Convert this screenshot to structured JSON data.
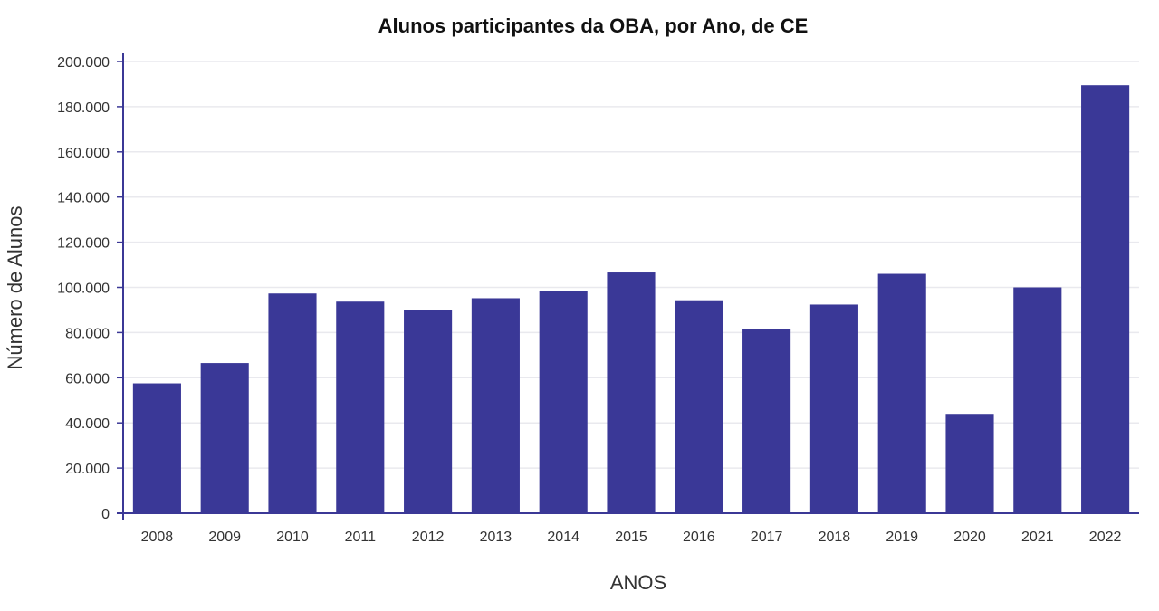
{
  "chart_data": {
    "type": "bar",
    "title": "Alunos participantes da OBA, por Ano, de CE",
    "xlabel": "ANOS",
    "ylabel": "Número de Alunos",
    "categories": [
      "2008",
      "2009",
      "2010",
      "2011",
      "2012",
      "2013",
      "2014",
      "2015",
      "2016",
      "2017",
      "2018",
      "2019",
      "2020",
      "2021",
      "2022"
    ],
    "values": [
      57500,
      66500,
      97300,
      93700,
      89800,
      95200,
      98500,
      106600,
      94300,
      81600,
      92400,
      106000,
      44000,
      100000,
      189500
    ],
    "ylim": [
      0,
      200000
    ],
    "yticks": [
      0,
      20000,
      40000,
      60000,
      80000,
      100000,
      120000,
      140000,
      160000,
      180000,
      200000
    ],
    "ytick_labels": [
      "0",
      "20.000",
      "40.000",
      "60.000",
      "80.000",
      "100.000",
      "120.000",
      "140.000",
      "160.000",
      "180.000",
      "200.000"
    ],
    "bar_color": "#3a3897",
    "grid": true,
    "legend": "none"
  }
}
